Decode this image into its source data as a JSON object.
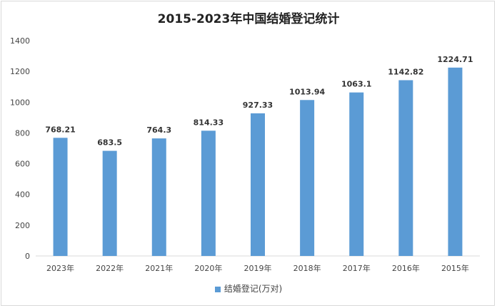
{
  "chart_data": {
    "type": "bar",
    "title": "2015-2023年中国结婚登记统计",
    "categories": [
      "2023年",
      "2022年",
      "2021年",
      "2020年",
      "2019年",
      "2018年",
      "2017年",
      "2016年",
      "2015年"
    ],
    "series": [
      {
        "name": "结婚登记(万对)",
        "values": [
          768.21,
          683.5,
          764.3,
          814.33,
          927.33,
          1013.94,
          1063.1,
          1142.82,
          1224.71
        ],
        "labels": [
          "768.21",
          "683.5",
          "764.3",
          "814.33",
          "927.33",
          "1013.94",
          "1063.1",
          "1142.82",
          "1224.71"
        ]
      }
    ],
    "ylim": [
      0,
      1400
    ],
    "yticks": [
      0,
      200,
      400,
      600,
      800,
      1000,
      1200,
      1400
    ],
    "grid": false,
    "legend": "bottom",
    "color": "#5b9bd5"
  }
}
